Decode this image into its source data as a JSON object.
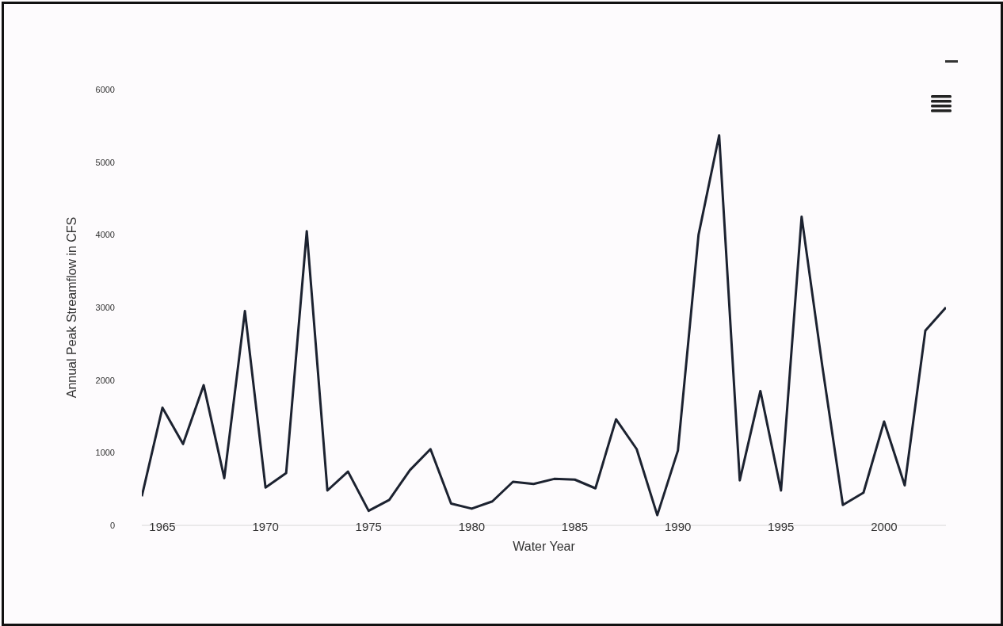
{
  "chart_data": {
    "type": "line",
    "xlabel": "Water Year",
    "ylabel": "Annual Peak Streamflow in CFS",
    "x": [
      1964,
      1965,
      1966,
      1967,
      1968,
      1969,
      1970,
      1971,
      1972,
      1973,
      1974,
      1975,
      1976,
      1977,
      1978,
      1979,
      1980,
      1981,
      1982,
      1983,
      1984,
      1985,
      1986,
      1987,
      1988,
      1989,
      1990,
      1991,
      1992,
      1993,
      1994,
      1995,
      1996,
      1997,
      1998,
      1999,
      2000,
      2001,
      2002,
      2003
    ],
    "series": [
      {
        "color": "#1c2230",
        "values": [
          400,
          1620,
          1120,
          1930,
          650,
          2950,
          520,
          720,
          4050,
          480,
          740,
          200,
          350,
          760,
          1050,
          300,
          230,
          330,
          600,
          570,
          640,
          630,
          510,
          1460,
          1050,
          140,
          1030,
          4000,
          5370,
          620,
          1850,
          480,
          4250,
          2200,
          280,
          450,
          1430,
          550,
          2680,
          3000
        ]
      }
    ],
    "xlim": [
      1964,
      2003
    ],
    "xticks": [
      1965,
      1970,
      1975,
      1980,
      1985,
      1990,
      1995,
      2000
    ],
    "ylim": [
      0,
      6000
    ],
    "yticks": [
      0,
      1000,
      2000,
      3000,
      4000,
      5000,
      6000
    ],
    "grid": false,
    "legend": false,
    "marker": "none",
    "line_style": "solid"
  }
}
